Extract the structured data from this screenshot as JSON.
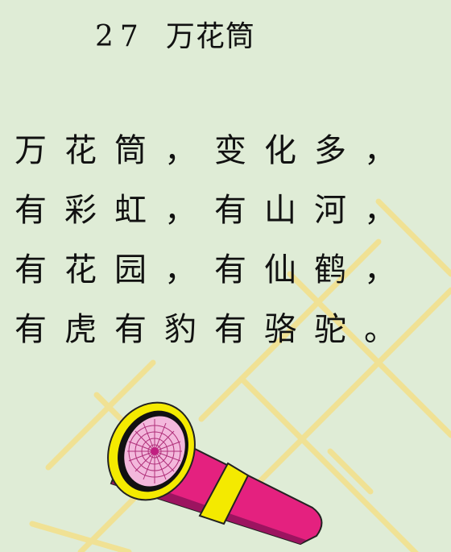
{
  "lesson": {
    "number": "27",
    "title": "万花筒"
  },
  "poem": {
    "lines": [
      "万花筒，变化多，",
      "有彩虹，有山河，",
      "有花园，有仙鹤，",
      "有虎有豹有骆驼。"
    ]
  },
  "illustration": {
    "icon": "kaleidoscope-icon",
    "tube_color": "#e4217f",
    "rim_color": "#f4ea00",
    "lens_color": "#f3b8dc"
  },
  "watermark": {
    "icon": "tian-grid-watermark-icon",
    "color": "#f3e089"
  }
}
